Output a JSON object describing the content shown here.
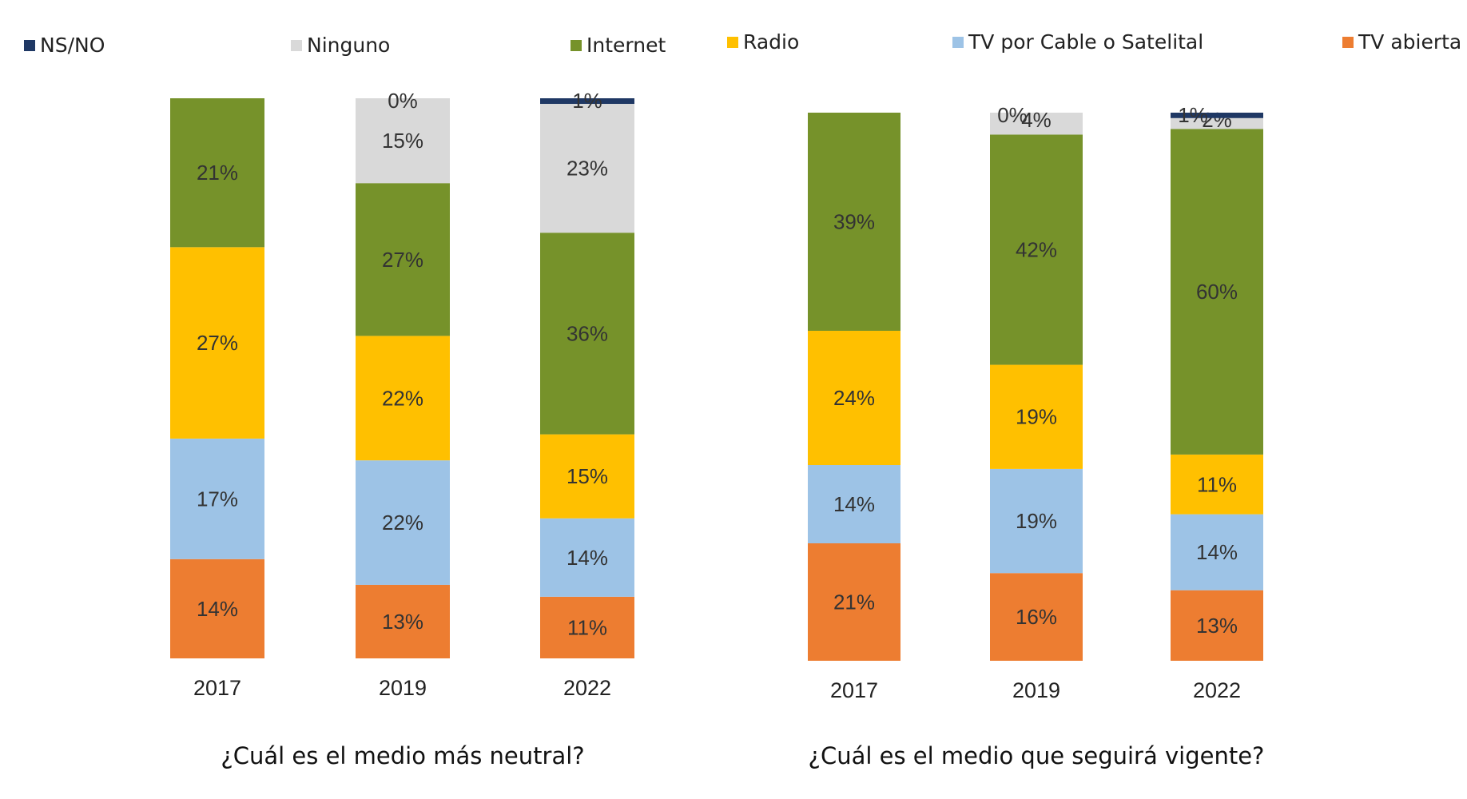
{
  "legend": [
    {
      "key": "nsno",
      "label": "NS/NO",
      "color": "#1F3864"
    },
    {
      "key": "ninguno",
      "label": "Ninguno",
      "color": "#D9D9D9"
    },
    {
      "key": "internet",
      "label": "Internet",
      "color": "#76922A"
    },
    {
      "key": "radio",
      "label": "Radio",
      "color": "#FFC000"
    },
    {
      "key": "cable",
      "label": "TV por Cable o Satelital",
      "color": "#9DC3E6"
    },
    {
      "key": "abierta",
      "label": "TV abierta",
      "color": "#ED7D31"
    }
  ],
  "chart_data": [
    {
      "type": "bar",
      "stacked": true,
      "title": "¿Cuál es el medio más neutral?",
      "categories": [
        "2017",
        "2019",
        "2022"
      ],
      "series": [
        {
          "name": "TV abierta",
          "values": [
            14,
            13,
            11
          ],
          "labels": [
            "14%",
            "13%",
            "11%"
          ]
        },
        {
          "name": "TV por Cable o Satelital",
          "values": [
            17,
            22,
            14
          ],
          "labels": [
            "17%",
            "22%",
            "14%"
          ]
        },
        {
          "name": "Radio",
          "values": [
            27,
            22,
            15
          ],
          "labels": [
            "27%",
            "22%",
            "15%"
          ]
        },
        {
          "name": "Internet",
          "values": [
            21,
            27,
            36
          ],
          "labels": [
            "21%",
            "27%",
            "36%"
          ]
        },
        {
          "name": "Ninguno",
          "values": [
            0,
            15,
            23
          ],
          "labels": [
            "",
            "15%",
            "23%"
          ]
        },
        {
          "name": "NS/NO",
          "values": [
            0,
            0,
            1
          ],
          "labels": [
            "",
            "0%",
            "1%"
          ]
        }
      ]
    },
    {
      "type": "bar",
      "stacked": true,
      "title": "¿Cuál es el medio que seguirá vigente?",
      "categories": [
        "2017",
        "2019",
        "2022"
      ],
      "series": [
        {
          "name": "TV abierta",
          "values": [
            21,
            16,
            13
          ],
          "labels": [
            "21%",
            "16%",
            "13%"
          ]
        },
        {
          "name": "TV por Cable o Satelital",
          "values": [
            14,
            19,
            14
          ],
          "labels": [
            "14%",
            "19%",
            "14%"
          ]
        },
        {
          "name": "Radio",
          "values": [
            24,
            19,
            11
          ],
          "labels": [
            "24%",
            "19%",
            "11%"
          ]
        },
        {
          "name": "Internet",
          "values": [
            39,
            42,
            60
          ],
          "labels": [
            "39%",
            "42%",
            "60%"
          ]
        },
        {
          "name": "Ninguno",
          "values": [
            0,
            4,
            2
          ],
          "labels": [
            "",
            "4%",
            "2%"
          ]
        },
        {
          "name": "NS/NO",
          "values": [
            0,
            0,
            1
          ],
          "labels": [
            "",
            "0%",
            "1%"
          ]
        }
      ]
    }
  ]
}
